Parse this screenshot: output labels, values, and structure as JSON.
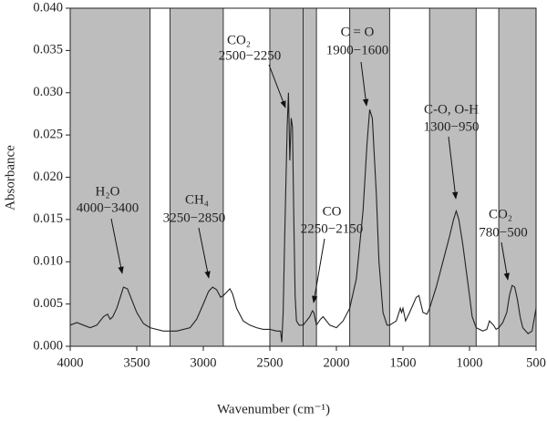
{
  "chart_data": {
    "type": "line",
    "xlabel": "Wavenumber (cm⁻¹)",
    "ylabel": "Absorbance",
    "xlim": [
      4000,
      500
    ],
    "ylim": [
      0,
      0.04
    ],
    "xticks": [
      4000,
      3500,
      3000,
      2500,
      2000,
      1500,
      1000,
      500
    ],
    "yticks": [
      {
        "value": 0,
        "label": "0.000"
      },
      0.005,
      {
        "value": 0.01,
        "label": "0.010"
      },
      0.015,
      {
        "value": 0.02,
        "label": "0.020"
      },
      0.025,
      {
        "value": 0.03,
        "label": "0.030"
      },
      0.035,
      {
        "value": 0.04,
        "label": "0.040"
      }
    ],
    "color": "#222222",
    "shade_color": "#bdbdbd",
    "regions": [
      {
        "label": "H₂O",
        "range": "4000−3400",
        "from": 4000,
        "to": 3400
      },
      {
        "label": "CH₄",
        "range": "3250−2850",
        "from": 3250,
        "to": 2850
      },
      {
        "label": "CO₂",
        "range": "2500−2250",
        "from": 2500,
        "to": 2250
      },
      {
        "label": "CO",
        "range": "2250−2150",
        "from": 2250,
        "to": 2150
      },
      {
        "label": "C = O",
        "range": "1900−1600",
        "from": 1900,
        "to": 1600
      },
      {
        "label": "C-O, O-H",
        "range": "1300−950",
        "from": 1300,
        "to": 950
      },
      {
        "label": "CO₂",
        "range": "780−500",
        "from": 780,
        "to": 500
      }
    ],
    "x": [
      4000,
      3950,
      3900,
      3850,
      3800,
      3750,
      3720,
      3700,
      3680,
      3650,
      3620,
      3600,
      3570,
      3550,
      3500,
      3450,
      3400,
      3300,
      3200,
      3100,
      3050,
      3000,
      2960,
      2930,
      2900,
      2870,
      2850,
      2800,
      2780,
      2750,
      2700,
      2650,
      2600,
      2550,
      2500,
      2450,
      2420,
      2410,
      2400,
      2390,
      2370,
      2360,
      2350,
      2340,
      2330,
      2320,
      2310,
      2300,
      2280,
      2250,
      2200,
      2180,
      2170,
      2150,
      2120,
      2100,
      2050,
      2000,
      1950,
      1900,
      1850,
      1800,
      1770,
      1750,
      1730,
      1700,
      1680,
      1650,
      1620,
      1600,
      1550,
      1520,
      1510,
      1500,
      1480,
      1450,
      1400,
      1380,
      1350,
      1320,
      1300,
      1250,
      1200,
      1150,
      1120,
      1100,
      1080,
      1050,
      1000,
      980,
      950,
      900,
      870,
      850,
      820,
      800,
      780,
      750,
      720,
      700,
      680,
      660,
      640,
      620,
      600,
      560,
      530,
      500
    ],
    "values": [
      0.0025,
      0.0028,
      0.0025,
      0.0022,
      0.0025,
      0.0035,
      0.0038,
      0.0032,
      0.0035,
      0.0045,
      0.006,
      0.007,
      0.0068,
      0.006,
      0.004,
      0.0027,
      0.0022,
      0.0018,
      0.0018,
      0.0022,
      0.0032,
      0.005,
      0.0065,
      0.007,
      0.0067,
      0.0058,
      0.006,
      0.0068,
      0.0062,
      0.0045,
      0.003,
      0.0025,
      0.0022,
      0.002,
      0.002,
      0.0018,
      0.0018,
      0.0005,
      0.004,
      0.012,
      0.026,
      0.03,
      0.022,
      0.027,
      0.026,
      0.015,
      0.006,
      0.003,
      0.0025,
      0.0025,
      0.0035,
      0.0042,
      0.004,
      0.0025,
      0.0032,
      0.0035,
      0.0025,
      0.0022,
      0.003,
      0.0045,
      0.008,
      0.016,
      0.024,
      0.028,
      0.027,
      0.018,
      0.01,
      0.004,
      0.0025,
      0.0025,
      0.003,
      0.0045,
      0.004,
      0.0045,
      0.003,
      0.004,
      0.0058,
      0.006,
      0.004,
      0.0038,
      0.0045,
      0.007,
      0.01,
      0.013,
      0.015,
      0.016,
      0.015,
      0.012,
      0.006,
      0.0035,
      0.0022,
      0.0018,
      0.002,
      0.003,
      0.0025,
      0.002,
      0.0022,
      0.0028,
      0.004,
      0.006,
      0.0072,
      0.007,
      0.0055,
      0.0035,
      0.0022,
      0.0015,
      0.0018,
      0.0045
    ]
  }
}
